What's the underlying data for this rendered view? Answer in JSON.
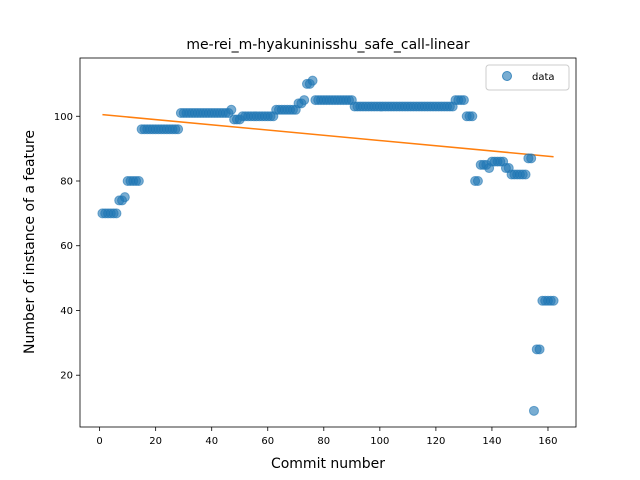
{
  "chart_data": {
    "type": "scatter",
    "title": "me-rei_m-hyakuninisshu_safe_call-linear",
    "xlabel": "Commit number",
    "ylabel": "Number of instance of a feature",
    "xlim": [
      -7,
      170
    ],
    "ylim": [
      4,
      118
    ],
    "xticks": [
      0,
      20,
      40,
      60,
      80,
      100,
      120,
      140,
      160
    ],
    "yticks": [
      20,
      40,
      60,
      80,
      100
    ],
    "legend_position": "top-right",
    "colors": {
      "points": "#1f77b4",
      "fit": "#ff7f0e"
    },
    "series": [
      {
        "name": "data",
        "style": "points",
        "x": [
          1,
          2,
          3,
          4,
          5,
          6,
          7,
          8,
          9,
          10,
          11,
          12,
          13,
          14,
          15,
          16,
          17,
          18,
          19,
          20,
          21,
          22,
          23,
          24,
          25,
          26,
          27,
          28,
          29,
          30,
          31,
          32,
          33,
          34,
          35,
          36,
          37,
          38,
          39,
          40,
          41,
          42,
          43,
          44,
          45,
          46,
          47,
          48,
          49,
          50,
          51,
          52,
          53,
          54,
          55,
          56,
          57,
          58,
          59,
          60,
          61,
          62,
          63,
          64,
          65,
          66,
          67,
          68,
          69,
          70,
          71,
          72,
          73,
          74,
          75,
          76,
          77,
          78,
          79,
          80,
          81,
          82,
          83,
          84,
          85,
          86,
          87,
          88,
          89,
          90,
          91,
          92,
          93,
          94,
          95,
          96,
          97,
          98,
          99,
          100,
          101,
          102,
          103,
          104,
          105,
          106,
          107,
          108,
          109,
          110,
          111,
          112,
          113,
          114,
          115,
          116,
          117,
          118,
          119,
          120,
          121,
          122,
          123,
          124,
          125,
          126,
          127,
          128,
          129,
          130,
          131,
          132,
          133,
          134,
          135,
          136,
          137,
          138,
          139,
          140,
          141,
          142,
          143,
          144,
          145,
          146,
          147,
          148,
          149,
          150,
          151,
          152,
          153,
          154,
          155,
          156,
          157,
          158,
          159,
          160,
          161,
          162
        ],
        "y": [
          70,
          70,
          70,
          70,
          70,
          70,
          74,
          74,
          75,
          80,
          80,
          80,
          80,
          80,
          96,
          96,
          96,
          96,
          96,
          96,
          96,
          96,
          96,
          96,
          96,
          96,
          96,
          96,
          101,
          101,
          101,
          101,
          101,
          101,
          101,
          101,
          101,
          101,
          101,
          101,
          101,
          101,
          101,
          101,
          101,
          101,
          102,
          99,
          99,
          99,
          100,
          100,
          100,
          100,
          100,
          100,
          100,
          100,
          100,
          100,
          100,
          100,
          102,
          102,
          102,
          102,
          102,
          102,
          102,
          102,
          104,
          104,
          105,
          110,
          110,
          111,
          105,
          105,
          105,
          105,
          105,
          105,
          105,
          105,
          105,
          105,
          105,
          105,
          105,
          105,
          103,
          103,
          103,
          103,
          103,
          103,
          103,
          103,
          103,
          103,
          103,
          103,
          103,
          103,
          103,
          103,
          103,
          103,
          103,
          103,
          103,
          103,
          103,
          103,
          103,
          103,
          103,
          103,
          103,
          103,
          103,
          103,
          103,
          103,
          103,
          103,
          105,
          105,
          105,
          105,
          100,
          100,
          100,
          80,
          80,
          85,
          85,
          85,
          84,
          86,
          86,
          86,
          86,
          86,
          84,
          84,
          82,
          82,
          82,
          82,
          82,
          82,
          87,
          87,
          9,
          28,
          28,
          43,
          43,
          43,
          43,
          43
        ]
      },
      {
        "name": "",
        "style": "line",
        "x": [
          1,
          162
        ],
        "y": [
          100.5,
          87.5
        ]
      }
    ]
  }
}
